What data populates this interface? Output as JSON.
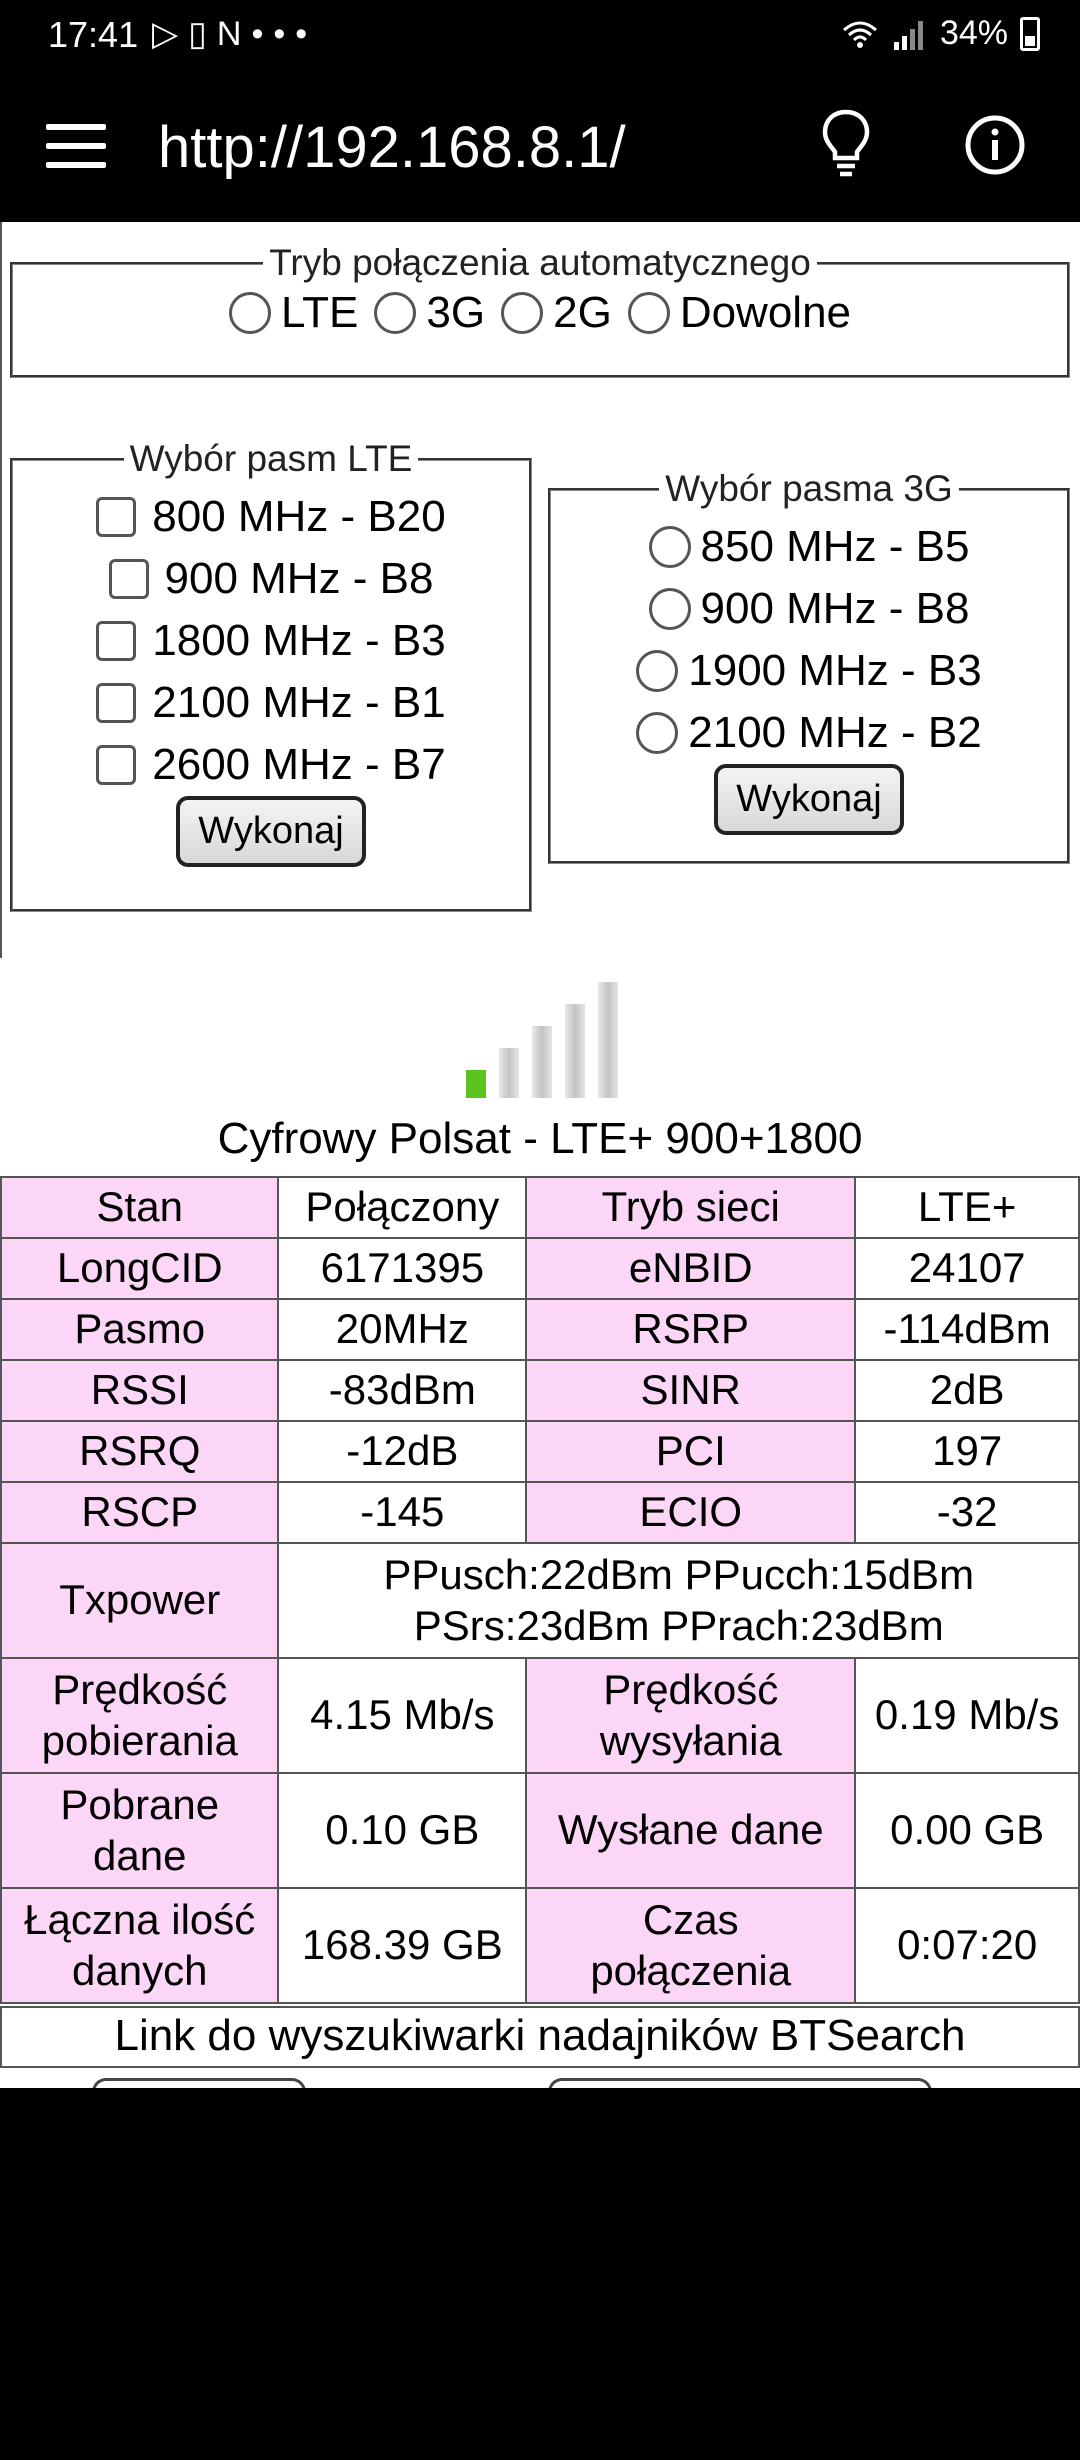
{
  "status_bar": {
    "time": "17:41",
    "left_icons": [
      "play-store-icon",
      "battery-saver-icon",
      "netflix-icon",
      "more-dots-icon"
    ],
    "battery": "34%"
  },
  "toolbar": {
    "url": "http://192.168.8.1/"
  },
  "connection_mode": {
    "legend": "Tryb połączenia automatycznego",
    "options": [
      "LTE",
      "3G",
      "2G",
      "Dowolne"
    ]
  },
  "lte_bands": {
    "legend": "Wybór pasm LTE",
    "items": [
      "800 MHz - B20",
      "900 MHz - B8",
      "1800 MHz - B3",
      "2100 MHz - B1",
      "2600 MHz - B7"
    ],
    "button": "Wykonaj"
  },
  "g3_bands": {
    "legend": "Wybór pasma 3G",
    "items": [
      "850 MHz - B5",
      "900 MHz - B8",
      "1900 MHz - B3",
      "2100 MHz - B2"
    ],
    "button": "Wykonaj"
  },
  "signal": {
    "bars_total": 5,
    "bars_active": 1,
    "active_color": "#5cc21e"
  },
  "carrier": "Cyfrowy Polsat - LTE+ 900+1800",
  "stats": {
    "stan_label": "Stan",
    "stan_value": "Połączony",
    "tryb_label": "Tryb sieci",
    "tryb_value": "LTE+",
    "longcid_label": "LongCID",
    "longcid_value": "6171395",
    "enbid_label": "eNBID",
    "enbid_value": "24107",
    "pasmo_label": "Pasmo",
    "pasmo_value": "20MHz",
    "rsrp_label": "RSRP",
    "rsrp_value": "-114dBm",
    "rssi_label": "RSSI",
    "rssi_value": "-83dBm",
    "sinr_label": "SINR",
    "sinr_value": "2dB",
    "rsrq_label": "RSRQ",
    "rsrq_value": "-12dB",
    "pci_label": "PCI",
    "pci_value": "197",
    "rscp_label": "RSCP",
    "rscp_value": "-145",
    "ecio_label": "ECIO",
    "ecio_value": "-32",
    "txpower_label": "Txpower",
    "txpower_line1": "PPusch:22dBm PPucch:15dBm",
    "txpower_line2": "PSrs:23dBm PPrach:23dBm",
    "dl_speed_label_1": "Prędkość",
    "dl_speed_label_2": "pobierania",
    "dl_speed_value": "4.15 Mb/s",
    "ul_speed_label_1": "Prędkość",
    "ul_speed_label_2": "wysyłania",
    "ul_speed_value": "0.19 Mb/s",
    "dl_data_label_1": "Pobrane",
    "dl_data_label_2": "dane",
    "dl_data_value": "0.10 GB",
    "ul_data_label": "Wysłane dane",
    "ul_data_value": "0.00 GB",
    "total_label_1": "Łączna ilość",
    "total_label_2": "danych",
    "total_value": "168.39 GB",
    "time_label_1": "Czas",
    "time_label_2": "połączenia",
    "time_value": "0:07:20"
  },
  "bts_link": "Link do wyszukiwarki nadajników BTSearch"
}
